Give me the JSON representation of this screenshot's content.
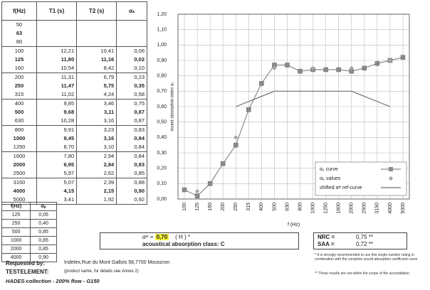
{
  "table": {
    "header": [
      "f(Hz)",
      "T1 (s)",
      "T2 (s)",
      "αₛ"
    ],
    "rows": [
      [
        "50"
      ],
      [
        "63"
      ],
      [
        "80"
      ],
      [
        "100",
        "12,21",
        "10,41",
        "0,06"
      ],
      [
        "125",
        "11,80",
        "11,16",
        "0,02"
      ],
      [
        "160",
        "10,54",
        "8,42",
        "0,10"
      ],
      [
        "200",
        "11,31",
        "6,79",
        "0,23"
      ],
      [
        "250",
        "11,47",
        "5,75",
        "0,35"
      ],
      [
        "315",
        "11,02",
        "4,24",
        "0,58"
      ],
      [
        "400",
        "9,85",
        "3,46",
        "0,75"
      ],
      [
        "500",
        "9,68",
        "3,11",
        "0,87"
      ],
      [
        "630",
        "10,28",
        "3,16",
        "0,87"
      ],
      [
        "800",
        "9,91",
        "3,23",
        "0,83"
      ],
      [
        "1000",
        "9,45",
        "3,16",
        "0,84"
      ],
      [
        "1250",
        "8,70",
        "3,10",
        "0,84"
      ],
      [
        "1600",
        "7,80",
        "2,94",
        "0,84"
      ],
      [
        "2000",
        "6,95",
        "2,84",
        "0,83"
      ],
      [
        "2500",
        "5,97",
        "2,62",
        "0,85"
      ],
      [
        "3150",
        "5,07",
        "2,39",
        "0,88"
      ],
      [
        "4000",
        "4,15",
        "2,15",
        "0,90"
      ],
      [
        "5000",
        "3,41",
        "1,92",
        "0,92"
      ]
    ]
  },
  "table2": {
    "header": [
      "f(Hz)",
      "αₚ"
    ],
    "rows": [
      [
        "125",
        "0,05"
      ],
      [
        "250",
        "0,40"
      ],
      [
        "500",
        "0,85"
      ],
      [
        "1000",
        "0,85"
      ],
      [
        "2000",
        "0,85"
      ],
      [
        "4000",
        "0,90"
      ]
    ]
  },
  "chart_data": {
    "type": "line",
    "ylabel": "sound absorption index αₛ",
    "xlabel": "f (Hz)",
    "categories": [
      "100",
      "125",
      "160",
      "200",
      "250",
      "315",
      "400",
      "500",
      "630",
      "800",
      "1000",
      "1250",
      "1600",
      "2000",
      "2500",
      "3150",
      "4000",
      "5000"
    ],
    "ylim": [
      0,
      1.2
    ],
    "yticks": [
      {
        "value": 0,
        "label": "0,00"
      },
      {
        "value": 0.1,
        "label": "0,10"
      },
      {
        "value": 0.2,
        "label": "0,20"
      },
      {
        "value": 0.3,
        "label": "0,30"
      },
      {
        "value": 0.4,
        "label": "0,40"
      },
      {
        "value": 0.5,
        "label": "0,50"
      },
      {
        "value": 0.6,
        "label": "0,60"
      },
      {
        "value": 0.7,
        "label": "0,70"
      },
      {
        "value": 0.8,
        "label": "0,80"
      },
      {
        "value": 0.9,
        "label": "0,90"
      },
      {
        "value": 1.0,
        "label": "1,00"
      },
      {
        "value": 1.1,
        "label": "1,10"
      },
      {
        "value": 1.2,
        "label": "1,20"
      }
    ],
    "grid": true,
    "legend": "lower right",
    "series": [
      {
        "name": "αₛ curve",
        "color": "#8a8a8a",
        "marker": "square",
        "values": [
          0.06,
          0.02,
          0.1,
          0.23,
          0.35,
          0.58,
          0.75,
          0.87,
          0.87,
          0.83,
          0.84,
          0.84,
          0.84,
          0.83,
          0.85,
          0.88,
          0.9,
          0.92
        ]
      },
      {
        "name": "αₚ values",
        "color": "#a8a8a8",
        "marker": "circle",
        "x": [
          "125",
          "250",
          "500",
          "1000",
          "2000",
          "4000"
        ],
        "values": [
          0.05,
          0.4,
          0.85,
          0.85,
          0.85,
          0.9
        ]
      },
      {
        "name": "shifted αʷ ref-curve",
        "color": "#6e6e6e",
        "marker": "none",
        "x": [
          "250",
          "500",
          "1000",
          "2000",
          "4000"
        ],
        "values": [
          0.6,
          0.7,
          0.7,
          0.7,
          0.6
        ]
      }
    ]
  },
  "rating": {
    "label": "αʷ =",
    "value": "0,70",
    "index": "( H )",
    "mark": "*",
    "class_text": "acoustical absorption class: C"
  },
  "nrc": {
    "label": "NRC =",
    "value": "0,75",
    "mark": "**"
  },
  "saa": {
    "label": "SAA =",
    "value": "0,72",
    "mark": "**"
  },
  "notes": [
    "* It is strongly recommended to use this single-number rating in combination with the complete sound absorption coefficient curve",
    "** These results are not within the scope of the accreditation"
  ],
  "requested_by": {
    "label": "Requested by:",
    "value": "Indetex,Rue du Mont Gallois 58,7700 Mouscron"
  },
  "test_element": {
    "label": "TESTELEMENT:",
    "value": "(product name, for details see Annex 2)"
  },
  "footer": "HADES-collection - 200% flow - G150"
}
